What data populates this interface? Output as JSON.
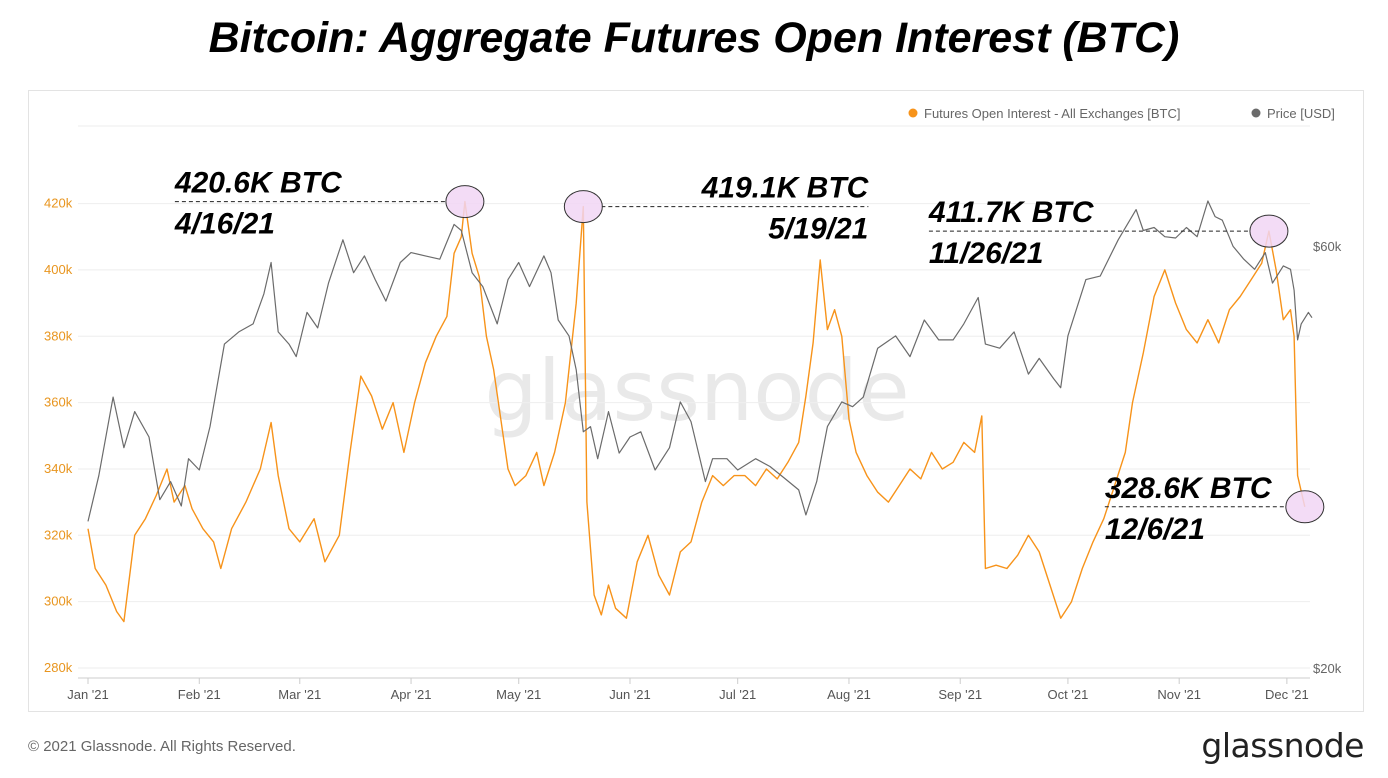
{
  "title": "Bitcoin: Aggregate Futures Open Interest (BTC)",
  "footer": {
    "copyright": "© 2021 Glassnode. All Rights Reserved.",
    "logo": "glassnode"
  },
  "watermark": "glassnode",
  "colors": {
    "oi": "#f7931a",
    "price": "#6b6b6b",
    "grid": "#eeeeee",
    "left_axis_text": "#e8951e",
    "marker_fill": "#f1d6f5"
  },
  "chart_data": {
    "type": "line",
    "title": "Bitcoin: Aggregate Futures Open Interest (BTC)",
    "x_range": [
      "2021-01-01",
      "2021-12-08"
    ],
    "x_ticks": [
      {
        "date": "2021-01-01",
        "label": "Jan '21"
      },
      {
        "date": "2021-02-01",
        "label": "Feb '21"
      },
      {
        "date": "2021-03-01",
        "label": "Mar '21"
      },
      {
        "date": "2021-04-01",
        "label": "Apr '21"
      },
      {
        "date": "2021-05-01",
        "label": "May '21"
      },
      {
        "date": "2021-06-01",
        "label": "Jun '21"
      },
      {
        "date": "2021-07-01",
        "label": "Jul '21"
      },
      {
        "date": "2021-08-01",
        "label": "Aug '21"
      },
      {
        "date": "2021-09-01",
        "label": "Sep '21"
      },
      {
        "date": "2021-10-01",
        "label": "Oct '21"
      },
      {
        "date": "2021-11-01",
        "label": "Nov '21"
      },
      {
        "date": "2021-12-01",
        "label": "Dec '21"
      }
    ],
    "y_left": {
      "min": 280000,
      "max": 425000,
      "ticks": [
        280000,
        300000,
        320000,
        340000,
        360000,
        380000,
        400000,
        420000
      ],
      "tick_labels": [
        "280k",
        "300k",
        "320k",
        "340k",
        "360k",
        "380k",
        "400k",
        "420k"
      ]
    },
    "y_right": {
      "scale": "log",
      "min": 20000,
      "max": 70000,
      "ticks": [
        20000,
        60000
      ],
      "tick_labels": [
        "$20k",
        "$60k"
      ]
    },
    "legend": {
      "position": "top-right"
    },
    "grid": true,
    "series": [
      {
        "name": "Futures Open Interest - All Exchanges [BTC]",
        "axis": "left",
        "color": "#f7931a",
        "points": [
          [
            "2021-01-01",
            322000
          ],
          [
            "2021-01-03",
            310000
          ],
          [
            "2021-01-06",
            305000
          ],
          [
            "2021-01-09",
            297000
          ],
          [
            "2021-01-11",
            294000
          ],
          [
            "2021-01-14",
            320000
          ],
          [
            "2021-01-17",
            325000
          ],
          [
            "2021-01-20",
            332000
          ],
          [
            "2021-01-23",
            340000
          ],
          [
            "2021-01-25",
            330000
          ],
          [
            "2021-01-28",
            335000
          ],
          [
            "2021-01-30",
            328000
          ],
          [
            "2021-02-02",
            322000
          ],
          [
            "2021-02-05",
            318000
          ],
          [
            "2021-02-07",
            310000
          ],
          [
            "2021-02-10",
            322000
          ],
          [
            "2021-02-14",
            330000
          ],
          [
            "2021-02-18",
            340000
          ],
          [
            "2021-02-21",
            354000
          ],
          [
            "2021-02-23",
            338000
          ],
          [
            "2021-02-26",
            322000
          ],
          [
            "2021-03-01",
            318000
          ],
          [
            "2021-03-05",
            325000
          ],
          [
            "2021-03-08",
            312000
          ],
          [
            "2021-03-12",
            320000
          ],
          [
            "2021-03-15",
            345000
          ],
          [
            "2021-03-18",
            368000
          ],
          [
            "2021-03-21",
            362000
          ],
          [
            "2021-03-24",
            352000
          ],
          [
            "2021-03-27",
            360000
          ],
          [
            "2021-03-30",
            345000
          ],
          [
            "2021-04-02",
            360000
          ],
          [
            "2021-04-05",
            372000
          ],
          [
            "2021-04-08",
            380000
          ],
          [
            "2021-04-11",
            386000
          ],
          [
            "2021-04-13",
            405000
          ],
          [
            "2021-04-15",
            410000
          ],
          [
            "2021-04-16",
            420600
          ],
          [
            "2021-04-18",
            405000
          ],
          [
            "2021-04-20",
            398000
          ],
          [
            "2021-04-22",
            380000
          ],
          [
            "2021-04-24",
            370000
          ],
          [
            "2021-04-26",
            355000
          ],
          [
            "2021-04-28",
            340000
          ],
          [
            "2021-04-30",
            335000
          ],
          [
            "2021-05-03",
            338000
          ],
          [
            "2021-05-06",
            345000
          ],
          [
            "2021-05-08",
            335000
          ],
          [
            "2021-05-11",
            345000
          ],
          [
            "2021-05-14",
            360000
          ],
          [
            "2021-05-17",
            390000
          ],
          [
            "2021-05-19",
            419100
          ],
          [
            "2021-05-20",
            330000
          ],
          [
            "2021-05-22",
            302000
          ],
          [
            "2021-05-24",
            296000
          ],
          [
            "2021-05-26",
            305000
          ],
          [
            "2021-05-28",
            298000
          ],
          [
            "2021-05-31",
            295000
          ],
          [
            "2021-06-03",
            312000
          ],
          [
            "2021-06-06",
            320000
          ],
          [
            "2021-06-09",
            308000
          ],
          [
            "2021-06-12",
            302000
          ],
          [
            "2021-06-15",
            315000
          ],
          [
            "2021-06-18",
            318000
          ],
          [
            "2021-06-21",
            330000
          ],
          [
            "2021-06-24",
            338000
          ],
          [
            "2021-06-27",
            335000
          ],
          [
            "2021-06-30",
            338000
          ],
          [
            "2021-07-03",
            338000
          ],
          [
            "2021-07-06",
            335000
          ],
          [
            "2021-07-09",
            340000
          ],
          [
            "2021-07-12",
            337000
          ],
          [
            "2021-07-15",
            342000
          ],
          [
            "2021-07-18",
            348000
          ],
          [
            "2021-07-20",
            362000
          ],
          [
            "2021-07-22",
            378000
          ],
          [
            "2021-07-24",
            403000
          ],
          [
            "2021-07-26",
            382000
          ],
          [
            "2021-07-28",
            388000
          ],
          [
            "2021-07-30",
            380000
          ],
          [
            "2021-08-01",
            355000
          ],
          [
            "2021-08-03",
            345000
          ],
          [
            "2021-08-06",
            338000
          ],
          [
            "2021-08-09",
            333000
          ],
          [
            "2021-08-12",
            330000
          ],
          [
            "2021-08-15",
            335000
          ],
          [
            "2021-08-18",
            340000
          ],
          [
            "2021-08-21",
            337000
          ],
          [
            "2021-08-24",
            345000
          ],
          [
            "2021-08-27",
            340000
          ],
          [
            "2021-08-30",
            342000
          ],
          [
            "2021-09-02",
            348000
          ],
          [
            "2021-09-05",
            345000
          ],
          [
            "2021-09-07",
            356000
          ],
          [
            "2021-09-08",
            310000
          ],
          [
            "2021-09-11",
            311000
          ],
          [
            "2021-09-14",
            310000
          ],
          [
            "2021-09-17",
            314000
          ],
          [
            "2021-09-20",
            320000
          ],
          [
            "2021-09-23",
            315000
          ],
          [
            "2021-09-26",
            305000
          ],
          [
            "2021-09-29",
            295000
          ],
          [
            "2021-10-02",
            300000
          ],
          [
            "2021-10-05",
            310000
          ],
          [
            "2021-10-08",
            318000
          ],
          [
            "2021-10-11",
            325000
          ],
          [
            "2021-10-14",
            335000
          ],
          [
            "2021-10-17",
            345000
          ],
          [
            "2021-10-19",
            360000
          ],
          [
            "2021-10-22",
            375000
          ],
          [
            "2021-10-25",
            392000
          ],
          [
            "2021-10-28",
            400000
          ],
          [
            "2021-10-31",
            390000
          ],
          [
            "2021-11-03",
            382000
          ],
          [
            "2021-11-06",
            378000
          ],
          [
            "2021-11-09",
            385000
          ],
          [
            "2021-11-12",
            378000
          ],
          [
            "2021-11-15",
            388000
          ],
          [
            "2021-11-18",
            392000
          ],
          [
            "2021-11-21",
            397000
          ],
          [
            "2021-11-24",
            402000
          ],
          [
            "2021-11-26",
            411700
          ],
          [
            "2021-11-28",
            400000
          ],
          [
            "2021-11-30",
            385000
          ],
          [
            "2021-12-02",
            388000
          ],
          [
            "2021-12-03",
            380000
          ],
          [
            "2021-12-04",
            338000
          ],
          [
            "2021-12-06",
            328600
          ]
        ]
      },
      {
        "name": "Price [USD]",
        "axis": "right",
        "color": "#6b6b6b",
        "points": [
          [
            "2021-01-01",
            29300
          ],
          [
            "2021-01-04",
            33000
          ],
          [
            "2021-01-08",
            40500
          ],
          [
            "2021-01-11",
            35500
          ],
          [
            "2021-01-14",
            39000
          ],
          [
            "2021-01-18",
            36500
          ],
          [
            "2021-01-21",
            31000
          ],
          [
            "2021-01-24",
            32500
          ],
          [
            "2021-01-27",
            30500
          ],
          [
            "2021-01-29",
            34500
          ],
          [
            "2021-02-01",
            33500
          ],
          [
            "2021-02-04",
            37500
          ],
          [
            "2021-02-08",
            46500
          ],
          [
            "2021-02-12",
            48000
          ],
          [
            "2021-02-16",
            49000
          ],
          [
            "2021-02-19",
            53000
          ],
          [
            "2021-02-21",
            57500
          ],
          [
            "2021-02-23",
            48000
          ],
          [
            "2021-02-26",
            46500
          ],
          [
            "2021-02-28",
            45000
          ],
          [
            "2021-03-03",
            50500
          ],
          [
            "2021-03-06",
            48500
          ],
          [
            "2021-03-09",
            54500
          ],
          [
            "2021-03-13",
            61000
          ],
          [
            "2021-03-16",
            56000
          ],
          [
            "2021-03-19",
            58500
          ],
          [
            "2021-03-22",
            55000
          ],
          [
            "2021-03-25",
            52000
          ],
          [
            "2021-03-29",
            57500
          ],
          [
            "2021-04-01",
            59000
          ],
          [
            "2021-04-05",
            58500
          ],
          [
            "2021-04-09",
            58000
          ],
          [
            "2021-04-13",
            63500
          ],
          [
            "2021-04-15",
            62500
          ],
          [
            "2021-04-18",
            56000
          ],
          [
            "2021-04-21",
            54000
          ],
          [
            "2021-04-25",
            49000
          ],
          [
            "2021-04-28",
            55000
          ],
          [
            "2021-05-01",
            57500
          ],
          [
            "2021-05-04",
            54000
          ],
          [
            "2021-05-08",
            58500
          ],
          [
            "2021-05-10",
            56000
          ],
          [
            "2021-05-12",
            49500
          ],
          [
            "2021-05-15",
            47500
          ],
          [
            "2021-05-17",
            43500
          ],
          [
            "2021-05-19",
            37000
          ],
          [
            "2021-05-21",
            37500
          ],
          [
            "2021-05-23",
            34500
          ],
          [
            "2021-05-26",
            39000
          ],
          [
            "2021-05-29",
            35000
          ],
          [
            "2021-06-01",
            36500
          ],
          [
            "2021-06-04",
            37000
          ],
          [
            "2021-06-08",
            33500
          ],
          [
            "2021-06-12",
            35500
          ],
          [
            "2021-06-15",
            40000
          ],
          [
            "2021-06-18",
            38000
          ],
          [
            "2021-06-22",
            32500
          ],
          [
            "2021-06-24",
            34500
          ],
          [
            "2021-06-28",
            34500
          ],
          [
            "2021-07-01",
            33500
          ],
          [
            "2021-07-06",
            34500
          ],
          [
            "2021-07-10",
            33800
          ],
          [
            "2021-07-14",
            32800
          ],
          [
            "2021-07-18",
            31800
          ],
          [
            "2021-07-20",
            29800
          ],
          [
            "2021-07-23",
            32500
          ],
          [
            "2021-07-26",
            37500
          ],
          [
            "2021-07-30",
            40000
          ],
          [
            "2021-08-02",
            39500
          ],
          [
            "2021-08-05",
            40500
          ],
          [
            "2021-08-09",
            46000
          ],
          [
            "2021-08-14",
            47500
          ],
          [
            "2021-08-18",
            45000
          ],
          [
            "2021-08-22",
            49500
          ],
          [
            "2021-08-26",
            47000
          ],
          [
            "2021-08-30",
            47000
          ],
          [
            "2021-09-02",
            49000
          ],
          [
            "2021-09-06",
            52500
          ],
          [
            "2021-09-08",
            46500
          ],
          [
            "2021-09-12",
            46000
          ],
          [
            "2021-09-16",
            48000
          ],
          [
            "2021-09-20",
            43000
          ],
          [
            "2021-09-23",
            44800
          ],
          [
            "2021-09-27",
            42500
          ],
          [
            "2021-09-29",
            41500
          ],
          [
            "2021-10-01",
            47500
          ],
          [
            "2021-10-06",
            55000
          ],
          [
            "2021-10-10",
            55500
          ],
          [
            "2021-10-15",
            61000
          ],
          [
            "2021-10-20",
            66000
          ],
          [
            "2021-10-22",
            62500
          ],
          [
            "2021-10-25",
            63000
          ],
          [
            "2021-10-28",
            61500
          ],
          [
            "2021-10-31",
            61300
          ],
          [
            "2021-11-03",
            63000
          ],
          [
            "2021-11-06",
            61500
          ],
          [
            "2021-11-09",
            67500
          ],
          [
            "2021-11-11",
            64800
          ],
          [
            "2021-11-13",
            64200
          ],
          [
            "2021-11-16",
            60000
          ],
          [
            "2021-11-19",
            58000
          ],
          [
            "2021-11-22",
            56500
          ],
          [
            "2021-11-25",
            59000
          ],
          [
            "2021-11-27",
            54500
          ],
          [
            "2021-11-30",
            57000
          ],
          [
            "2021-12-02",
            56500
          ],
          [
            "2021-12-03",
            53500
          ],
          [
            "2021-12-04",
            47000
          ],
          [
            "2021-12-05",
            49000
          ],
          [
            "2021-12-07",
            50500
          ],
          [
            "2021-12-08",
            49800
          ]
        ]
      }
    ],
    "annotations": [
      {
        "date": "2021-04-16",
        "value": 420600,
        "label": "420.6K BTC",
        "sublabel": "4/16/21",
        "side": "left"
      },
      {
        "date": "2021-05-19",
        "value": 419100,
        "label": "419.1K BTC",
        "sublabel": "5/19/21",
        "side": "right"
      },
      {
        "date": "2021-11-26",
        "value": 411700,
        "label": "411.7K BTC",
        "sublabel": "11/26/21",
        "side": "left"
      },
      {
        "date": "2021-12-06",
        "value": 328600,
        "label": "328.6K BTC",
        "sublabel": "12/6/21",
        "side": "left"
      }
    ]
  }
}
